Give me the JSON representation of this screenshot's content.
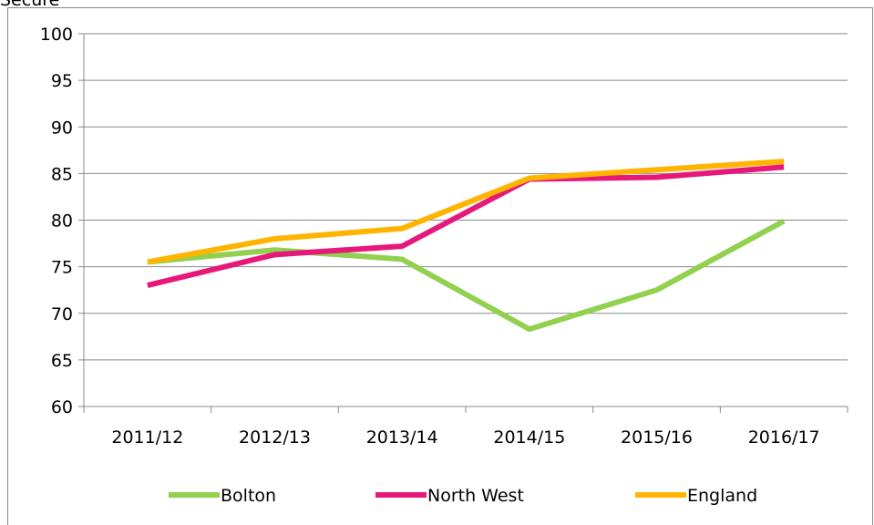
{
  "chart_data": {
    "type": "line",
    "title": "Secure",
    "categories": [
      "2011/12",
      "2012/13",
      "2013/14",
      "2014/15",
      "2015/16",
      "2016/17"
    ],
    "series": [
      {
        "name": "Bolton",
        "color": "#92d050",
        "values": [
          75.5,
          76.8,
          75.8,
          68.3,
          72.5,
          79.9
        ]
      },
      {
        "name": "North West",
        "color": "#e6197a",
        "values": [
          73.0,
          76.3,
          77.2,
          84.4,
          84.6,
          85.7
        ]
      },
      {
        "name": "England",
        "color": "#ffb400",
        "values": [
          75.5,
          78.0,
          79.1,
          84.5,
          85.4,
          86.3
        ]
      }
    ],
    "ylim": [
      60,
      100
    ],
    "yticks": [
      60,
      65,
      70,
      75,
      80,
      85,
      90,
      95,
      100
    ],
    "grid": true,
    "legend": "bottom"
  }
}
